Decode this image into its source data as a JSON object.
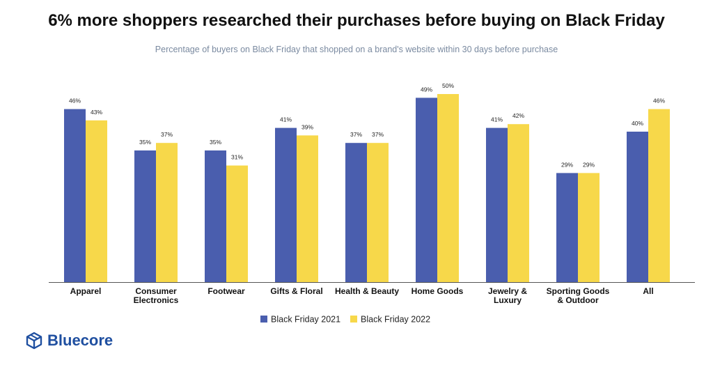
{
  "colors": {
    "series_2021": "#4a5eae",
    "series_2022": "#f7d84a",
    "axis": "#555555",
    "brand": "#1f4fa0"
  },
  "chart_data": {
    "type": "bar",
    "title": "6% more shoppers researched their purchases before buying on Black Friday",
    "subtitle": "Percentage of buyers on Black Friday that shopped on a brand's website within 30 days before purchase",
    "categories": [
      [
        "Apparel"
      ],
      [
        "Consumer",
        "Electronics"
      ],
      [
        "Footwear"
      ],
      [
        "Gifts & Floral"
      ],
      [
        "Health & Beauty"
      ],
      [
        "Home Goods"
      ],
      [
        "Jewelry &",
        "Luxury"
      ],
      [
        "Sporting Goods",
        "& Outdoor"
      ],
      [
        "All"
      ]
    ],
    "series": [
      {
        "name": "Black Friday 2021",
        "values": [
          46,
          35,
          35,
          41,
          37,
          49,
          41,
          29,
          40
        ]
      },
      {
        "name": "Black Friday 2022",
        "values": [
          43,
          37,
          31,
          39,
          37,
          50,
          42,
          29,
          46
        ]
      }
    ],
    "value_suffix": "%",
    "ylim": [
      0,
      50
    ],
    "grid": false,
    "legend": "bottom-center"
  },
  "brand": {
    "name": "Bluecore",
    "icon": "box-logo-icon"
  }
}
